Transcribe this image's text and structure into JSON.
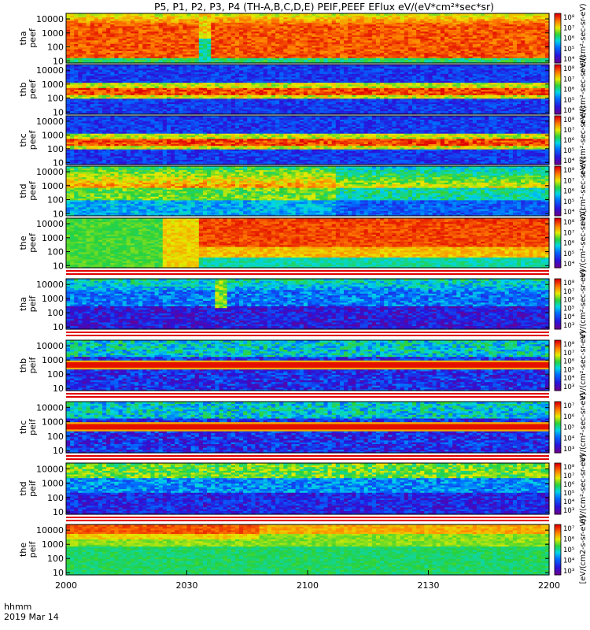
{
  "title": "P5, P1, P2, P3, P4 (TH-A,B,C,D,E) PEIF,PEEF EFlux eV/(eV*cm²*sec*sr)",
  "x_axis": {
    "tick_labels": [
      "2000",
      "2030",
      "2100",
      "2130",
      "2200"
    ],
    "label_line1": "hhmm",
    "label_line2": "2019 Mar 14"
  },
  "chart_data": {
    "type": "heatmap",
    "title": "P5, P1, P2, P3, P4 (TH-A,B,C,D,E) PEIF,PEEF EFlux eV/(eV*cm²*sec*sr)",
    "x_range": [
      "20:00",
      "22:00"
    ],
    "y_scale": "log",
    "y_ticks": [
      "10",
      "100",
      "1000",
      "10000"
    ],
    "ylim_eV": [
      7,
      25000
    ],
    "colormap": "rainbow (purple-blue-cyan-green-yellow-red)",
    "panels": [
      {
        "name": "tha peef",
        "zlim_exp": [
          4,
          8
        ],
        "cb_ticks": [
          "10⁸",
          "10⁷",
          "10⁶",
          "10⁵",
          "10⁴"
        ],
        "cb_unit": "eV/(cm²-sec-sr-eV)",
        "profile": "peef_a"
      },
      {
        "name": "thb peef",
        "zlim_exp": [
          4,
          8
        ],
        "cb_ticks": [
          "10⁸",
          "10⁷",
          "10⁶",
          "10⁵",
          "10⁴"
        ],
        "cb_unit": "eV/(cm²-sec-sr-eV)",
        "profile": "peef_band"
      },
      {
        "name": "thc peef",
        "zlim_exp": [
          4,
          8
        ],
        "cb_ticks": [
          "10⁸",
          "10⁷",
          "10⁶",
          "10⁵",
          "10⁴"
        ],
        "cb_unit": "eV/(cm²-sec-sr-eV)",
        "profile": "peef_band"
      },
      {
        "name": "thd peef",
        "zlim_exp": [
          4,
          8
        ],
        "cb_ticks": [
          "10⁸",
          "10⁷",
          "10⁶",
          "10⁵",
          "10⁴"
        ],
        "cb_unit": "eV/(cm²-sec-sr-eV)",
        "profile": "peef_d"
      },
      {
        "name": "the peef",
        "zlim_exp": [
          4,
          8
        ],
        "cb_ticks": [
          "10⁸",
          "10⁷",
          "10⁶",
          "10⁵",
          "10⁴"
        ],
        "cb_unit": "eV/(cm²-sec-sr-eV)",
        "profile": "peef_e"
      },
      {
        "name": "tha peif",
        "zlim_exp": [
          3,
          8
        ],
        "cb_ticks": [
          "10⁸",
          "10⁷",
          "10⁶",
          "10⁵",
          "10⁴",
          "10³"
        ],
        "cb_unit": "eV/(cm²-sec-sr-eV)",
        "profile": "peif_a"
      },
      {
        "name": "thb peif",
        "zlim_exp": [
          3,
          8
        ],
        "cb_ticks": [
          "10⁸",
          "10⁷",
          "10⁶",
          "10⁵",
          "10⁴",
          "10³"
        ],
        "cb_unit": "eV/(cm²-sec-sr-eV)",
        "profile": "peif_band"
      },
      {
        "name": "thc peif",
        "zlim_exp": [
          3,
          7
        ],
        "cb_ticks": [
          "10⁷",
          "10⁶",
          "10⁵",
          "10⁴",
          "10³"
        ],
        "cb_unit": "eV/(cm²-sec-sr-eV)",
        "profile": "peif_band"
      },
      {
        "name": "thd peif",
        "zlim_exp": [
          3,
          8
        ],
        "cb_ticks": [
          "10⁸",
          "10⁷",
          "10⁶",
          "10⁵",
          "10⁴",
          "10³"
        ],
        "cb_unit": "eV/(cm²-sec-sr-eV)",
        "profile": "peif_d"
      },
      {
        "name": "the peif",
        "zlim_exp": [
          3,
          7
        ],
        "cb_ticks": [
          "10⁷",
          "10⁶",
          "10⁵",
          "10⁴",
          "10³"
        ],
        "cb_unit": "[eV/(cm2-s-sr-eV)]",
        "profile": "peif_e"
      }
    ]
  }
}
